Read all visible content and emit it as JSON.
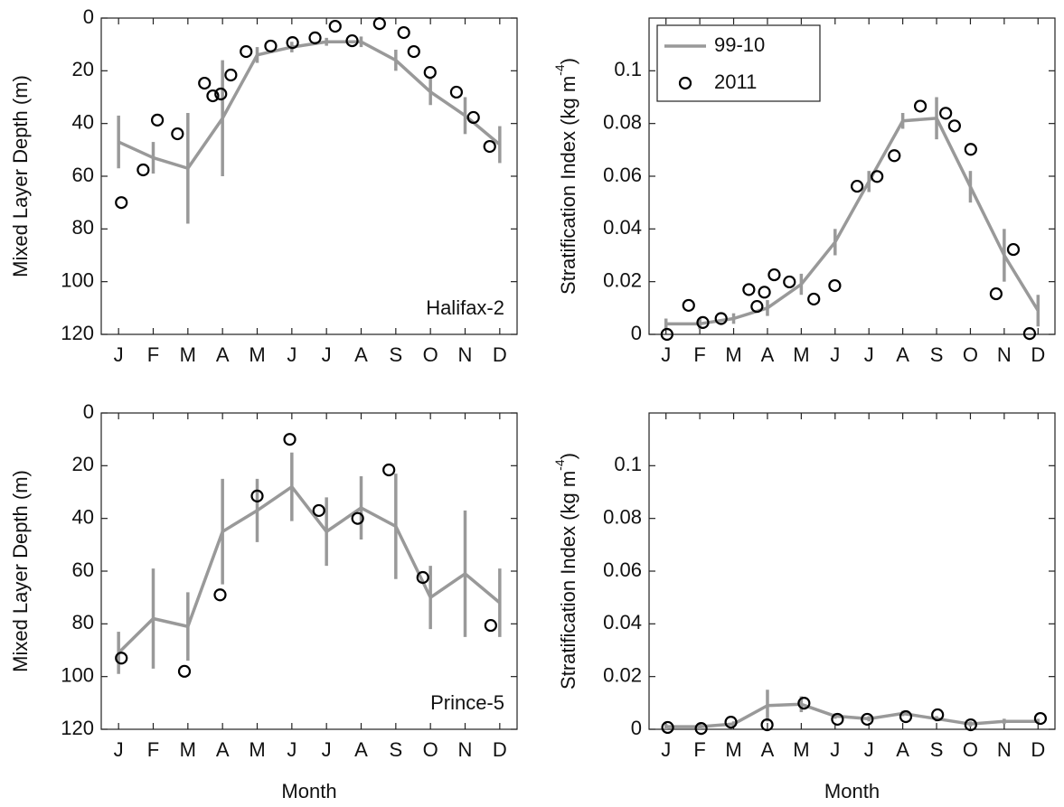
{
  "chart_data": [
    {
      "type": "line",
      "ylabel": "Mixed Layer Depth (m)",
      "annotation": "Halifax-2",
      "xlim": [
        0.5,
        12.5
      ],
      "ylim": [
        120,
        0
      ],
      "xticks": [
        {
          "value": 1,
          "label": "J"
        },
        {
          "value": 2,
          "label": "F"
        },
        {
          "value": 3,
          "label": "M"
        },
        {
          "value": 4,
          "label": "A"
        },
        {
          "value": 5,
          "label": "M"
        },
        {
          "value": 6,
          "label": "J"
        },
        {
          "value": 7,
          "label": "J"
        },
        {
          "value": 8,
          "label": "A"
        },
        {
          "value": 9,
          "label": "S"
        },
        {
          "value": 10,
          "label": "O"
        },
        {
          "value": 11,
          "label": "N"
        },
        {
          "value": 12,
          "label": "D"
        }
      ],
      "yticks": [
        0,
        20,
        40,
        60,
        80,
        100,
        120
      ],
      "series": [
        {
          "color": "#999999",
          "x": [
            1,
            2,
            3,
            4,
            5,
            6,
            7,
            8,
            9,
            10,
            11,
            12
          ],
          "values": [
            47,
            53,
            57,
            38,
            14,
            11,
            9,
            9,
            16,
            28,
            37,
            48
          ],
          "errors": [
            10,
            6,
            21,
            22,
            3,
            2,
            1.5,
            2,
            4,
            5,
            7,
            7
          ]
        },
        {
          "color": "#000000",
          "marker": "circle",
          "x": [
            1.08,
            1.71,
            2.12,
            2.7,
            3.48,
            3.72,
            3.95,
            4.24,
            4.68,
            5.39,
            6.02,
            6.67,
            7.25,
            7.74,
            8.53,
            9.23,
            9.52,
            9.99,
            10.75,
            11.24,
            11.71
          ],
          "values": [
            70,
            57.6,
            38.7,
            43.9,
            24.7,
            29.5,
            28.8,
            21.6,
            12.7,
            10.6,
            9.3,
            7.5,
            3.1,
            8.6,
            2.1,
            5.5,
            12.7,
            20.6,
            28.1,
            37.7,
            48.7
          ]
        }
      ]
    },
    {
      "type": "line",
      "ylabel": [
        "Stratification Index (kg m",
        "-4",
        ")"
      ],
      "legend": "upper left",
      "xlim": [
        0.5,
        12.5
      ],
      "ylim": [
        0,
        0.12
      ],
      "xticks": [
        {
          "value": 1,
          "label": "J"
        },
        {
          "value": 2,
          "label": "F"
        },
        {
          "value": 3,
          "label": "M"
        },
        {
          "value": 4,
          "label": "A"
        },
        {
          "value": 5,
          "label": "M"
        },
        {
          "value": 6,
          "label": "J"
        },
        {
          "value": 7,
          "label": "J"
        },
        {
          "value": 8,
          "label": "A"
        },
        {
          "value": 9,
          "label": "S"
        },
        {
          "value": 10,
          "label": "O"
        },
        {
          "value": 11,
          "label": "N"
        },
        {
          "value": 12,
          "label": "D"
        }
      ],
      "yticks": [
        0,
        0.02,
        0.04,
        0.06,
        0.08,
        0.1
      ],
      "series": [
        {
          "name": "99-10",
          "color": "#999999",
          "x": [
            1,
            2,
            3,
            4,
            5,
            6,
            7,
            8,
            9,
            10,
            11,
            12
          ],
          "values": [
            0.004,
            0.004,
            0.006,
            0.01,
            0.019,
            0.035,
            0.058,
            0.081,
            0.082,
            0.056,
            0.03,
            0.009
          ],
          "errors": [
            0.002,
            0.002,
            0.002,
            0.003,
            0.004,
            0.005,
            0.004,
            0.003,
            0.008,
            0.006,
            0.01,
            0.006
          ]
        },
        {
          "name": "2011",
          "color": "#000000",
          "marker": "circle",
          "x": [
            1.03,
            1.67,
            2.09,
            2.63,
            3.45,
            3.69,
            3.91,
            4.2,
            4.65,
            5.37,
            5.99,
            6.65,
            7.24,
            7.75,
            8.52,
            9.27,
            9.53,
            10.01,
            10.76,
            11.27,
            11.75
          ],
          "values": [
            0,
            0.011,
            0.0045,
            0.006,
            0.017,
            0.0106,
            0.016,
            0.0226,
            0.0199,
            0.0134,
            0.0185,
            0.0562,
            0.0599,
            0.0678,
            0.0866,
            0.0839,
            0.0791,
            0.0702,
            0.0154,
            0.0322,
            0.0003
          ]
        }
      ]
    },
    {
      "type": "line",
      "ylabel": "Mixed Layer Depth (m)",
      "xlabel": "Month",
      "annotation": "Prince-5",
      "xlim": [
        0.5,
        12.5
      ],
      "ylim": [
        120,
        0
      ],
      "xticks": [
        {
          "value": 1,
          "label": "J"
        },
        {
          "value": 2,
          "label": "F"
        },
        {
          "value": 3,
          "label": "M"
        },
        {
          "value": 4,
          "label": "A"
        },
        {
          "value": 5,
          "label": "M"
        },
        {
          "value": 6,
          "label": "J"
        },
        {
          "value": 7,
          "label": "J"
        },
        {
          "value": 8,
          "label": "A"
        },
        {
          "value": 9,
          "label": "S"
        },
        {
          "value": 10,
          "label": "O"
        },
        {
          "value": 11,
          "label": "N"
        },
        {
          "value": 12,
          "label": "D"
        }
      ],
      "yticks": [
        0,
        20,
        40,
        60,
        80,
        100,
        120
      ],
      "series": [
        {
          "color": "#999999",
          "x": [
            1,
            2,
            3,
            4,
            5,
            6,
            7,
            8,
            9,
            10,
            11,
            12
          ],
          "values": [
            91,
            78,
            81,
            45,
            37,
            28,
            45,
            36,
            43,
            70,
            61,
            72
          ],
          "errors": [
            8,
            19,
            13,
            20,
            12,
            13,
            13,
            12,
            20,
            12,
            24,
            13
          ]
        },
        {
          "color": "#000000",
          "marker": "circle",
          "x": [
            1.08,
            2.9,
            3.93,
            5.0,
            5.94,
            6.78,
            7.9,
            8.8,
            9.78,
            11.74
          ],
          "values": [
            93,
            98,
            69,
            31.5,
            10,
            37,
            40,
            21.6,
            62.4,
            80.6
          ]
        }
      ]
    },
    {
      "type": "line",
      "ylabel": [
        "Stratification Index (kg m",
        "-4",
        ")"
      ],
      "xlabel": "Month",
      "xlim": [
        0.5,
        12.5
      ],
      "ylim": [
        0,
        0.12
      ],
      "xticks": [
        {
          "value": 1,
          "label": "J"
        },
        {
          "value": 2,
          "label": "F"
        },
        {
          "value": 3,
          "label": "M"
        },
        {
          "value": 4,
          "label": "A"
        },
        {
          "value": 5,
          "label": "M"
        },
        {
          "value": 6,
          "label": "J"
        },
        {
          "value": 7,
          "label": "J"
        },
        {
          "value": 8,
          "label": "A"
        },
        {
          "value": 9,
          "label": "S"
        },
        {
          "value": 10,
          "label": "O"
        },
        {
          "value": 11,
          "label": "N"
        },
        {
          "value": 12,
          "label": "D"
        }
      ],
      "yticks": [
        0,
        0.02,
        0.04,
        0.06,
        0.08,
        0.1
      ],
      "series": [
        {
          "color": "#999999",
          "x": [
            1,
            2,
            3,
            4,
            5,
            6,
            7,
            8,
            9,
            10,
            11,
            12
          ],
          "values": [
            0.001,
            0.001,
            0.002,
            0.009,
            0.0095,
            0.005,
            0.004,
            0.006,
            0.004,
            0.002,
            0.003,
            0.003
          ],
          "errors": [
            0.001,
            0.001,
            0.001,
            0.006,
            0.003,
            0.001,
            0.001,
            0.001,
            0.001,
            0.001,
            0.001,
            0.001
          ]
        },
        {
          "color": "#000000",
          "marker": "circle",
          "x": [
            1.05,
            2.04,
            2.92,
            3.99,
            5.08,
            6.07,
            6.95,
            8.09,
            9.03,
            10.01,
            12.07
          ],
          "values": [
            0.0007,
            0.0003,
            0.0027,
            0.0017,
            0.0099,
            0.0038,
            0.0038,
            0.0048,
            0.0055,
            0.0017,
            0.0041
          ]
        }
      ]
    }
  ]
}
